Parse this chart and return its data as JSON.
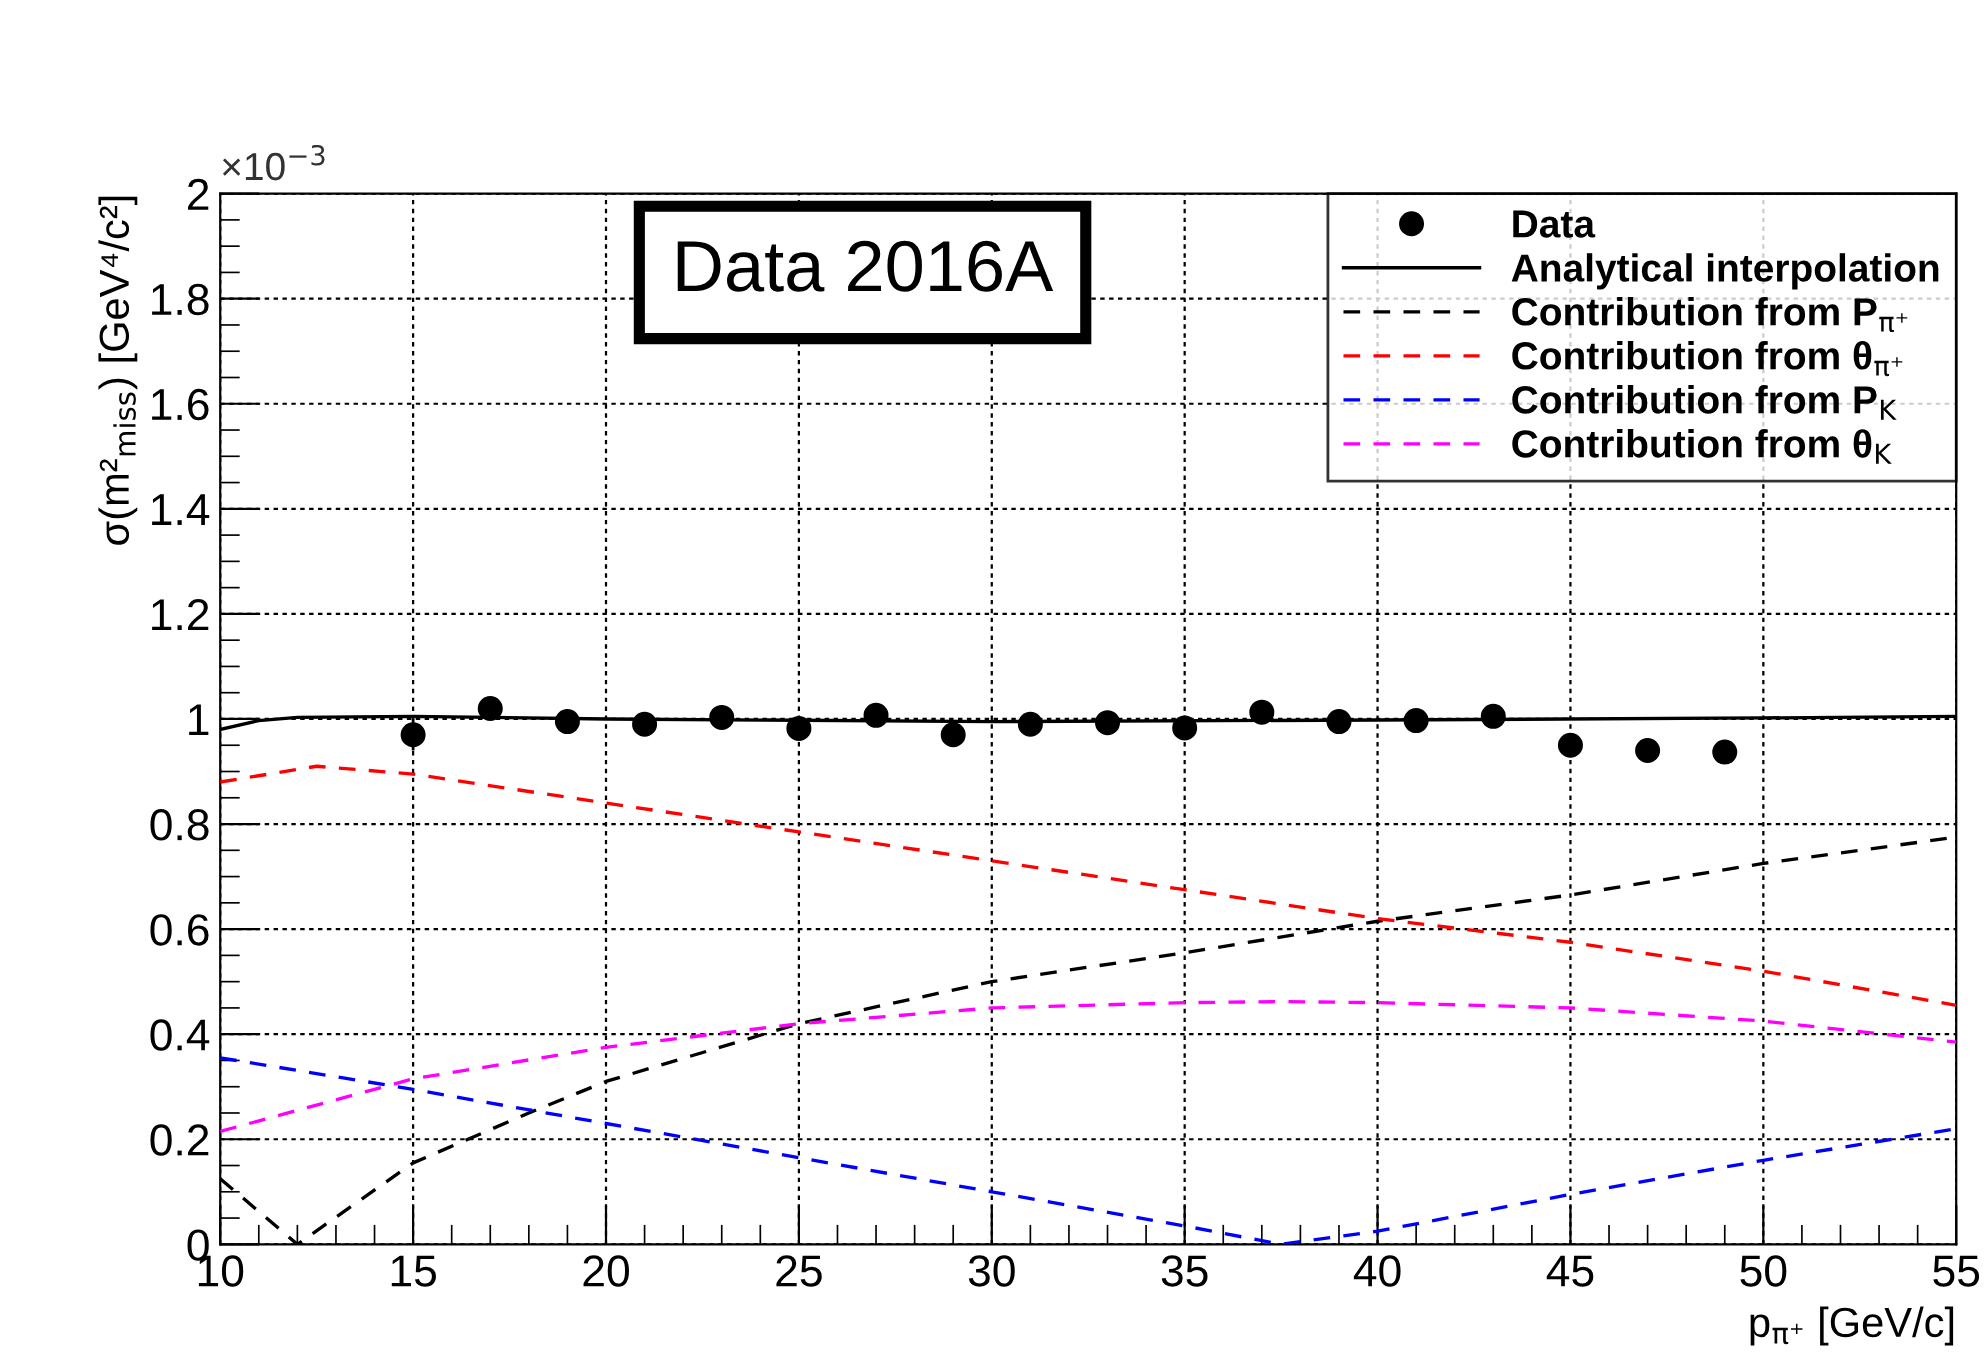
{
  "chart_data": {
    "type": "line",
    "xlabel": "p$_{π⁺}$ [GeV/c]",
    "ylabel": "σ(m²$_{miss}$) [GeV⁴/c²]",
    "annotations": [
      "Data 2016A",
      "×10$^{−3}$"
    ],
    "xlim": [
      10,
      55
    ],
    "xticks": [
      10,
      15,
      20,
      25,
      30,
      35,
      40,
      45,
      50,
      55
    ],
    "ylim": [
      0,
      2
    ],
    "yticks": [
      0,
      0.2,
      0.4,
      0.6,
      0.8,
      1,
      1.2,
      1.4,
      1.6,
      1.8,
      2
    ],
    "grid": true,
    "legend": "top right",
    "series": [
      {
        "name": "Data",
        "type": "scatter",
        "marker": "circle",
        "color": "#000000",
        "x": [
          15,
          17,
          19,
          21,
          23,
          25,
          27,
          29,
          31,
          33,
          35,
          37,
          39,
          41,
          43,
          45,
          47,
          49
        ],
        "values": [
          0.97,
          1.02,
          0.995,
          0.99,
          1.003,
          0.982,
          1.007,
          0.97,
          0.99,
          0.993,
          0.983,
          1.013,
          0.995,
          0.997,
          1.005,
          0.95,
          0.94,
          0.937
        ],
        "errors": [
          0.03,
          null,
          null,
          null,
          null,
          null,
          null,
          null,
          null,
          null,
          null,
          null,
          null,
          null,
          null,
          null,
          null,
          null
        ]
      },
      {
        "name": "Analytical interpolation",
        "line_style": "solid",
        "color": "#000000",
        "x": [
          10,
          11,
          12,
          15,
          20,
          30,
          40,
          50,
          55
        ],
        "values": [
          0.98,
          0.997,
          1.003,
          1.005,
          1.0,
          0.995,
          0.998,
          1.002,
          1.005
        ]
      },
      {
        "name": "Contribution from P$_{π⁺}$",
        "line_style": "dashed",
        "color": "#000000",
        "x": [
          10,
          12,
          15,
          18,
          20,
          25,
          30,
          35,
          40,
          45,
          50,
          55
        ],
        "values": [
          0.125,
          0.0,
          0.155,
          0.25,
          0.31,
          0.42,
          0.5,
          0.555,
          0.615,
          0.665,
          0.725,
          0.775
        ]
      },
      {
        "name": "Contribution from θ$_{π⁺}$",
        "line_style": "dashed",
        "color": "#ff0000",
        "x": [
          10,
          12.5,
          15,
          20,
          25,
          30,
          35,
          40,
          45,
          50,
          55
        ],
        "values": [
          0.88,
          0.91,
          0.895,
          0.84,
          0.785,
          0.73,
          0.675,
          0.62,
          0.575,
          0.52,
          0.455
        ]
      },
      {
        "name": "Contribution from P$_{K}$",
        "line_style": "dashed",
        "color": "#0000ff",
        "x": [
          10,
          15,
          20,
          25,
          30,
          35,
          37.5,
          40,
          45,
          50,
          55
        ],
        "values": [
          0.355,
          0.295,
          0.23,
          0.165,
          0.1,
          0.035,
          0.0,
          0.025,
          0.095,
          0.16,
          0.22
        ]
      },
      {
        "name": "Contribution from θ$_{K}$",
        "line_style": "dashed",
        "color": "#ff00ff",
        "x": [
          10,
          15,
          20,
          25,
          30,
          35,
          37.5,
          40,
          45,
          50,
          55
        ],
        "values": [
          0.215,
          0.315,
          0.375,
          0.42,
          0.45,
          0.46,
          0.462,
          0.46,
          0.45,
          0.425,
          0.385
        ]
      }
    ]
  }
}
